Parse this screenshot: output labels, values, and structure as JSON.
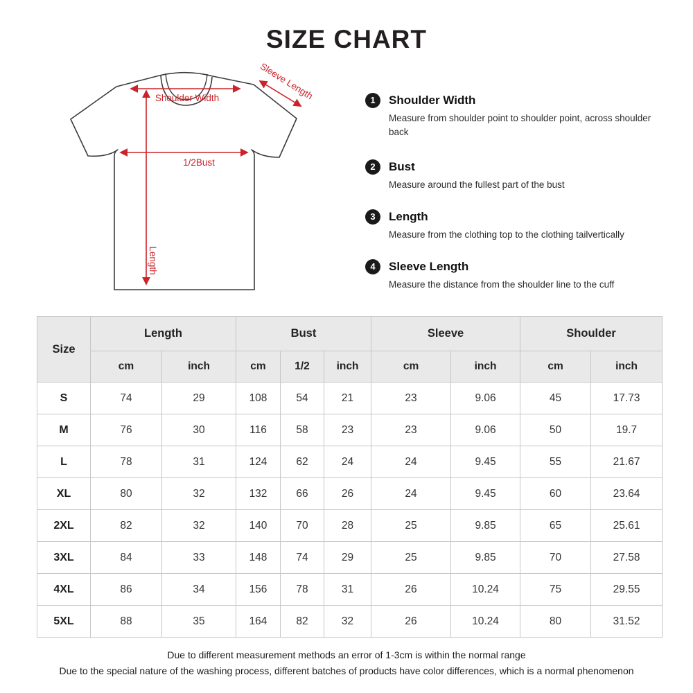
{
  "title": "SIZE CHART",
  "accent_color": "#cc2229",
  "diagram": {
    "labels": {
      "shoulder_width": "Shoulder Width",
      "sleeve_length": "Sleeve Length",
      "half_bust": "1/2Bust",
      "length": "Length"
    }
  },
  "instructions": [
    {
      "num": "1",
      "title": "Shoulder Width",
      "desc": "Measure from shoulder point to shoulder point, across shoulder back"
    },
    {
      "num": "2",
      "title": "Bust",
      "desc": "Measure around the fullest part of the bust"
    },
    {
      "num": "3",
      "title": "Length",
      "desc": "Measure from the clothing top to the clothing tailvertically"
    },
    {
      "num": "4",
      "title": "Sleeve Length",
      "desc": "Measure the distance from the shoulder line to the cuff"
    }
  ],
  "table": {
    "size_header": "Size",
    "groups": [
      {
        "label": "Length",
        "subs": [
          "cm",
          "inch"
        ]
      },
      {
        "label": "Bust",
        "subs": [
          "cm",
          "1/2",
          "inch"
        ]
      },
      {
        "label": "Sleeve",
        "subs": [
          "cm",
          "inch"
        ]
      },
      {
        "label": "Shoulder",
        "subs": [
          "cm",
          "inch"
        ]
      }
    ],
    "rows": [
      {
        "size": "S",
        "values": [
          "74",
          "29",
          "108",
          "54",
          "21",
          "23",
          "9.06",
          "45",
          "17.73"
        ]
      },
      {
        "size": "M",
        "values": [
          "76",
          "30",
          "116",
          "58",
          "23",
          "23",
          "9.06",
          "50",
          "19.7"
        ]
      },
      {
        "size": "L",
        "values": [
          "78",
          "31",
          "124",
          "62",
          "24",
          "24",
          "9.45",
          "55",
          "21.67"
        ]
      },
      {
        "size": "XL",
        "values": [
          "80",
          "32",
          "132",
          "66",
          "26",
          "24",
          "9.45",
          "60",
          "23.64"
        ]
      },
      {
        "size": "2XL",
        "values": [
          "82",
          "32",
          "140",
          "70",
          "28",
          "25",
          "9.85",
          "65",
          "25.61"
        ]
      },
      {
        "size": "3XL",
        "values": [
          "84",
          "33",
          "148",
          "74",
          "29",
          "25",
          "9.85",
          "70",
          "27.58"
        ]
      },
      {
        "size": "4XL",
        "values": [
          "86",
          "34",
          "156",
          "78",
          "31",
          "26",
          "10.24",
          "75",
          "29.55"
        ]
      },
      {
        "size": "5XL",
        "values": [
          "88",
          "35",
          "164",
          "82",
          "32",
          "26",
          "10.24",
          "80",
          "31.52"
        ]
      }
    ]
  },
  "notes": [
    "Due to different measurement methods an error of 1-3cm is within the normal range",
    "Due to the special nature of the washing process, different batches of products have color differences, which is a normal phenomenon"
  ]
}
